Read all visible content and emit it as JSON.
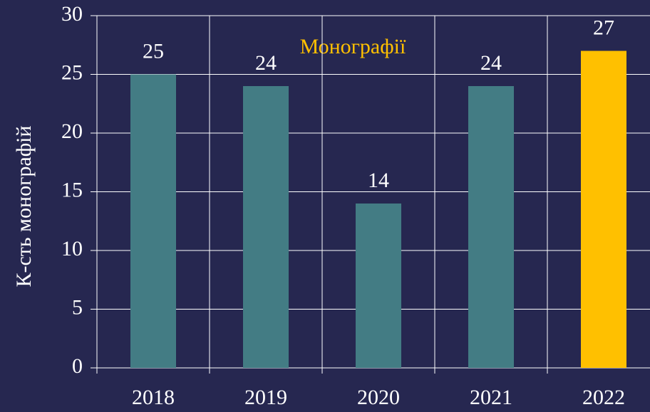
{
  "chart_data": {
    "type": "bar",
    "title": "Монографії",
    "y_label": "К-сть монографій",
    "categories": [
      "2018",
      "2019",
      "2020",
      "2021",
      "2022"
    ],
    "values": [
      25,
      24,
      14,
      24,
      27
    ],
    "colors": [
      "#437c84",
      "#437c84",
      "#437c84",
      "#437c84",
      "#ffc000"
    ],
    "title_color": "#ffc000",
    "ylim": [
      0,
      30
    ],
    "yticks": [
      0,
      5,
      10,
      15,
      20,
      25,
      30
    ],
    "grid": true
  }
}
